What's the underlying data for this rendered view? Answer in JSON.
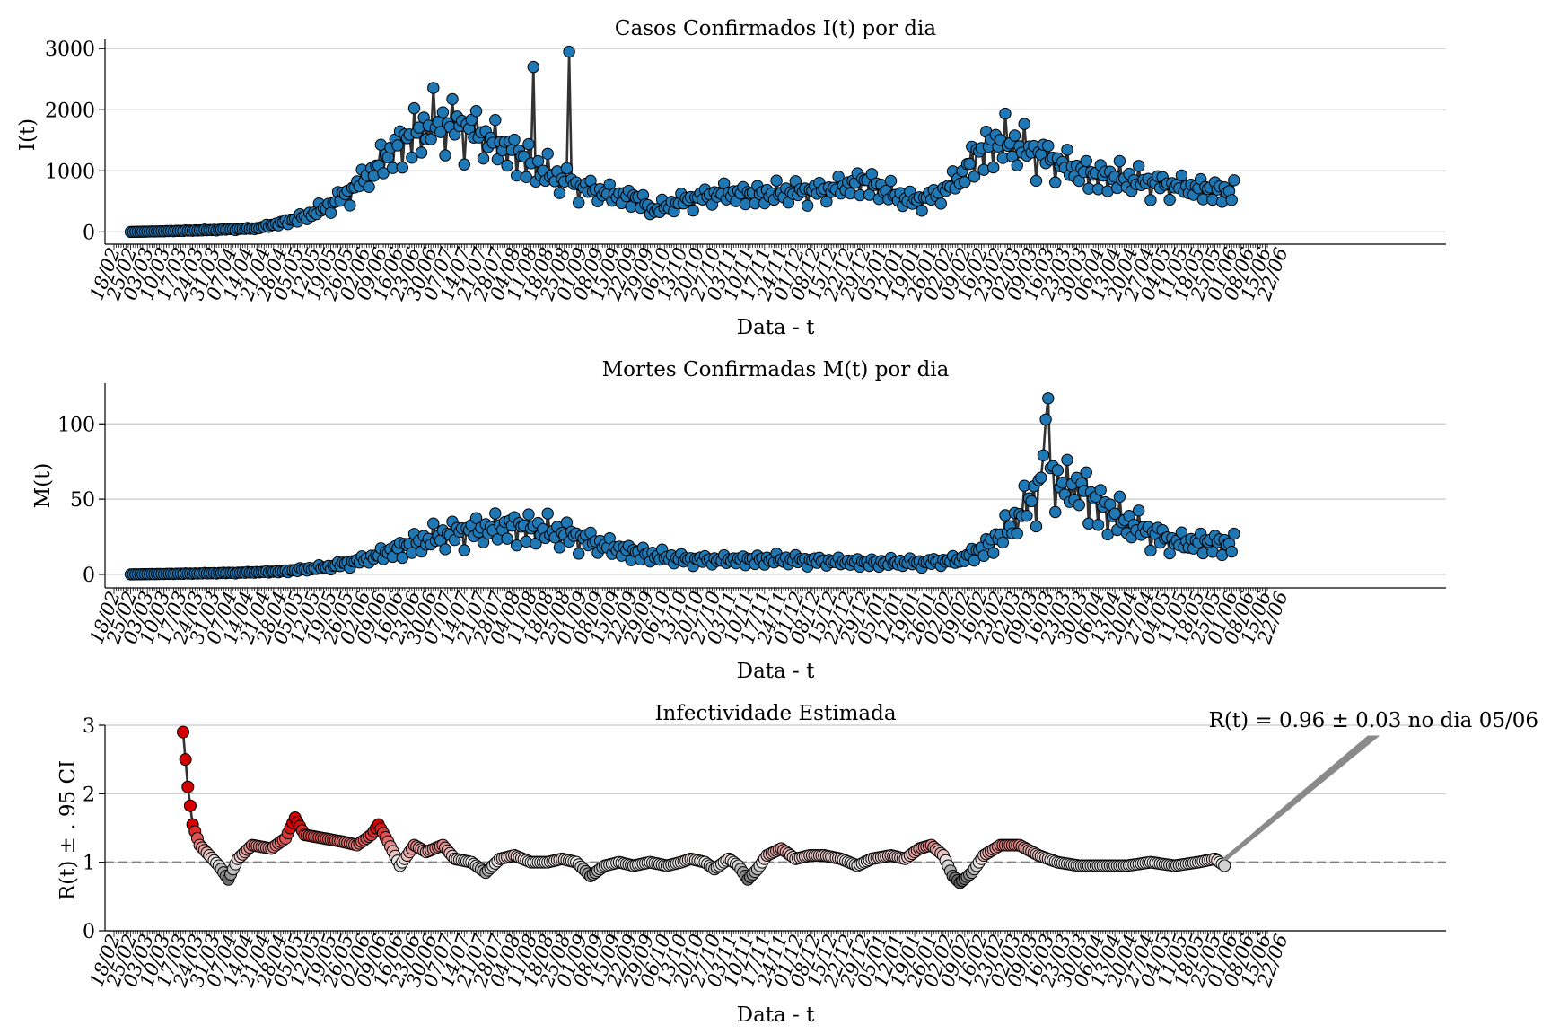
{
  "colors": {
    "marker": "#1f77b4",
    "line": "#333333",
    "ref_line": "#808080",
    "r_high": "#d40000",
    "r_low": "#555555",
    "r_neutral": "#ececec"
  },
  "x_ticks": [
    "18/02",
    "25/02",
    "03/03",
    "10/03",
    "17/03",
    "24/03",
    "31/03",
    "07/04",
    "14/04",
    "21/04",
    "28/04",
    "05/05",
    "12/05",
    "19/05",
    "26/05",
    "02/06",
    "09/06",
    "16/06",
    "23/06",
    "30/06",
    "07/07",
    "14/07",
    "21/07",
    "28/07",
    "04/08",
    "11/08",
    "18/08",
    "25/08",
    "01/09",
    "08/09",
    "15/09",
    "22/09",
    "29/09",
    "06/10",
    "13/10",
    "20/10",
    "27/10",
    "03/11",
    "10/11",
    "17/11",
    "24/11",
    "01/12",
    "08/12",
    "15/12",
    "22/12",
    "29/12",
    "05/01",
    "12/01",
    "19/01",
    "26/01",
    "02/02",
    "09/02",
    "16/02",
    "23/02",
    "02/03",
    "09/03",
    "16/03",
    "23/03",
    "30/03",
    "06/04",
    "13/04",
    "20/04",
    "27/04",
    "04/05",
    "11/05",
    "18/05",
    "25/05",
    "01/06",
    "08/06",
    "15/06",
    "22/06"
  ],
  "chart_data": [
    {
      "type": "line",
      "title": "Casos Confirmados I(t) por dia",
      "xlabel": "Data - t",
      "ylabel": "I(t)",
      "ylim": [
        -200,
        3150
      ],
      "yticks": [
        "0",
        "1000",
        "2000",
        "3000"
      ],
      "ytick_values": [
        0,
        1000,
        2000,
        3000
      ],
      "x_start_index": 7,
      "series": [
        {
          "name": "I(t)",
          "anchors": [
            [
              7,
              0
            ],
            [
              20,
              10
            ],
            [
              40,
              30
            ],
            [
              60,
              60
            ],
            [
              70,
              150
            ],
            [
              80,
              250
            ],
            [
              90,
              420
            ],
            [
              100,
              700
            ],
            [
              108,
              1000
            ],
            [
              115,
              1300
            ],
            [
              125,
              1600
            ],
            [
              135,
              1800
            ],
            [
              150,
              1700
            ],
            [
              165,
              1400
            ],
            [
              180,
              1000
            ],
            [
              195,
              750
            ],
            [
              210,
              620
            ],
            [
              220,
              560
            ],
            [
              226,
              350
            ],
            [
              240,
              520
            ],
            [
              255,
              650
            ],
            [
              270,
              620
            ],
            [
              285,
              650
            ],
            [
              300,
              700
            ],
            [
              315,
              850
            ],
            [
              325,
              650
            ],
            [
              335,
              500
            ],
            [
              345,
              600
            ],
            [
              355,
              900
            ],
            [
              362,
              1300
            ],
            [
              372,
              1500
            ],
            [
              380,
              1400
            ],
            [
              390,
              1250
            ],
            [
              400,
              1100
            ],
            [
              410,
              950
            ],
            [
              420,
              900
            ],
            [
              435,
              800
            ],
            [
              450,
              750
            ],
            [
              462,
              700
            ],
            [
              470,
              650
            ]
          ],
          "noise": [
            0.25,
            0.32,
            0.12,
            0.4,
            0.05,
            0.28,
            0.36,
            0.1
          ]
        }
      ]
    },
    {
      "type": "line",
      "title": "Mortes Confirmadas M(t) por dia",
      "xlabel": "Data - t",
      "ylabel": "M(t)",
      "ylim": [
        -9,
        127
      ],
      "yticks": [
        "0",
        "50",
        "100"
      ],
      "ytick_values": [
        0,
        50,
        100
      ],
      "x_start_index": 7,
      "series": [
        {
          "name": "M(t)",
          "anchors": [
            [
              7,
              0
            ],
            [
              30,
              0.5
            ],
            [
              50,
              1
            ],
            [
              70,
              2
            ],
            [
              90,
              5
            ],
            [
              105,
              10
            ],
            [
              120,
              18
            ],
            [
              135,
              25
            ],
            [
              150,
              30
            ],
            [
              165,
              33
            ],
            [
              180,
              30
            ],
            [
              195,
              25
            ],
            [
              210,
              18
            ],
            [
              225,
              13
            ],
            [
              240,
              10
            ],
            [
              260,
              10
            ],
            [
              280,
              10
            ],
            [
              300,
              9
            ],
            [
              320,
              8
            ],
            [
              340,
              8
            ],
            [
              355,
              10
            ],
            [
              365,
              18
            ],
            [
              375,
              30
            ],
            [
              385,
              50
            ],
            [
              392,
              75
            ],
            [
              398,
              60
            ],
            [
              405,
              60
            ],
            [
              415,
              45
            ],
            [
              425,
              35
            ],
            [
              435,
              28
            ],
            [
              445,
              22
            ],
            [
              460,
              22
            ],
            [
              470,
              20
            ]
          ],
          "noise": [
            0.3,
            0.45,
            0.15,
            0.5,
            0.08,
            0.35,
            0.42,
            0.2
          ],
          "peak": [
            392,
            117
          ]
        }
      ]
    },
    {
      "type": "scatter",
      "title": "Infectividade Estimada",
      "xlabel": "Data - t",
      "ylabel": "R(t) ± . 95 CI",
      "ylim": [
        0,
        3
      ],
      "yticks": [
        "0",
        "1",
        "2",
        "3"
      ],
      "ytick_values": [
        0,
        1,
        2,
        3
      ],
      "reference_y": 1,
      "x_start_index": 29,
      "series": [
        {
          "name": "R(t)",
          "anchors": [
            [
              29,
              2.9
            ],
            [
              31,
              2.1
            ],
            [
              33,
              1.55
            ],
            [
              36,
              1.25
            ],
            [
              40,
              1.1
            ],
            [
              44,
              0.95
            ],
            [
              48,
              0.75
            ],
            [
              52,
              1.05
            ],
            [
              58,
              1.25
            ],
            [
              66,
              1.2
            ],
            [
              72,
              1.35
            ],
            [
              76,
              1.65
            ],
            [
              80,
              1.4
            ],
            [
              88,
              1.35
            ],
            [
              96,
              1.3
            ],
            [
              102,
              1.25
            ],
            [
              108,
              1.4
            ],
            [
              111,
              1.55
            ],
            [
              115,
              1.3
            ],
            [
              120,
              0.95
            ],
            [
              126,
              1.25
            ],
            [
              131,
              1.15
            ],
            [
              138,
              1.25
            ],
            [
              143,
              1.05
            ],
            [
              150,
              1.0
            ],
            [
              156,
              0.85
            ],
            [
              162,
              1.05
            ],
            [
              168,
              1.1
            ],
            [
              175,
              1.0
            ],
            [
              182,
              1.0
            ],
            [
              188,
              1.05
            ],
            [
              194,
              1.0
            ],
            [
              200,
              0.8
            ],
            [
              206,
              0.95
            ],
            [
              212,
              1.0
            ],
            [
              218,
              0.95
            ],
            [
              225,
              1.0
            ],
            [
              232,
              0.95
            ],
            [
              238,
              1.0
            ],
            [
              242,
              1.05
            ],
            [
              248,
              1.0
            ],
            [
              252,
              0.9
            ],
            [
              258,
              1.05
            ],
            [
              262,
              0.95
            ],
            [
              266,
              0.75
            ],
            [
              270,
              0.9
            ],
            [
              274,
              1.1
            ],
            [
              280,
              1.2
            ],
            [
              286,
              1.05
            ],
            [
              292,
              1.1
            ],
            [
              298,
              1.1
            ],
            [
              305,
              1.05
            ],
            [
              312,
              0.95
            ],
            [
              318,
              1.05
            ],
            [
              326,
              1.1
            ],
            [
              332,
              1.05
            ],
            [
              338,
              1.2
            ],
            [
              343,
              1.25
            ],
            [
              348,
              1.1
            ],
            [
              352,
              0.8
            ],
            [
              355,
              0.7
            ],
            [
              360,
              0.85
            ],
            [
              365,
              1.1
            ],
            [
              372,
              1.25
            ],
            [
              380,
              1.25
            ],
            [
              388,
              1.1
            ],
            [
              396,
              1.0
            ],
            [
              405,
              0.95
            ],
            [
              415,
              0.95
            ],
            [
              425,
              0.95
            ],
            [
              435,
              1.0
            ],
            [
              445,
              0.95
            ],
            [
              455,
              1.0
            ],
            [
              462,
              1.05
            ],
            [
              466,
              0.95
            ]
          ]
        }
      ],
      "annotation": {
        "text": "R(t) = 0.96 ± 0.03 no dia 05/06",
        "x_index": 466,
        "y": 0.96
      }
    }
  ]
}
